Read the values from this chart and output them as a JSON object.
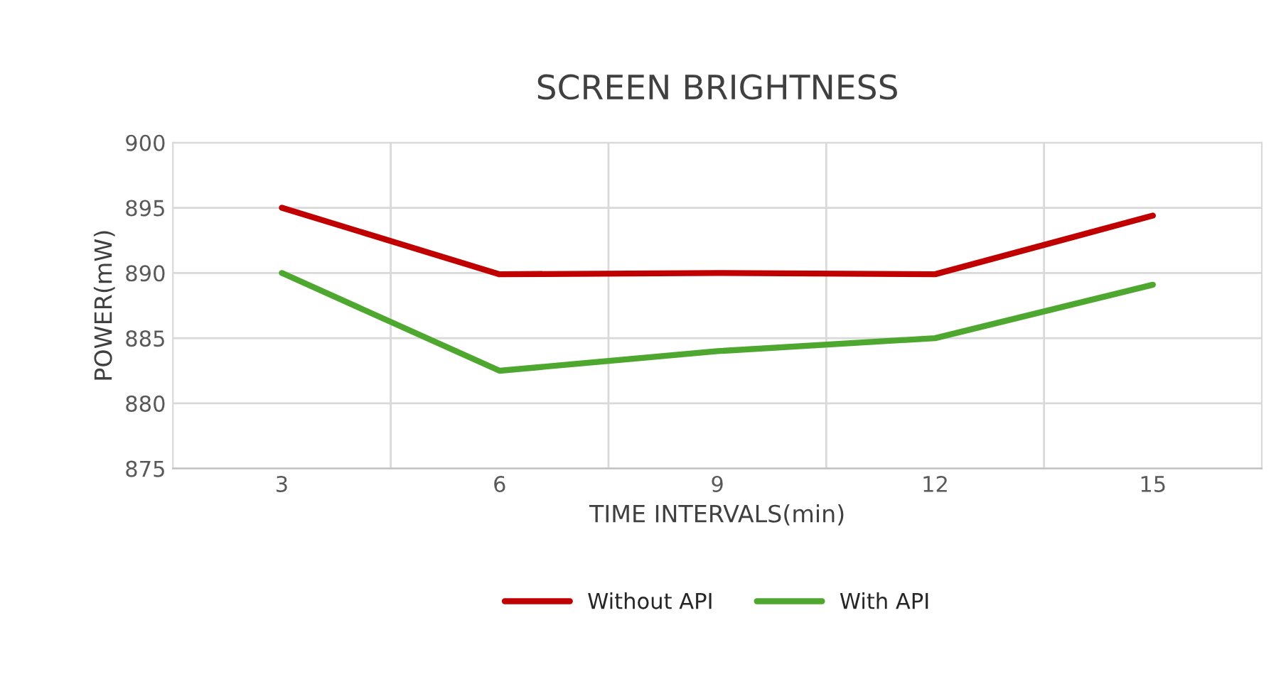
{
  "chart_data": {
    "type": "line",
    "title": "SCREEN BRIGHTNESS",
    "xlabel": "TIME INTERVALS(min)",
    "ylabel": "POWER(mW)",
    "categories": [
      "3",
      "6",
      "9",
      "12",
      "15"
    ],
    "series": [
      {
        "name": "Without API",
        "color": "#c00000",
        "values": [
          895,
          889.9,
          890,
          889.9,
          894.4
        ]
      },
      {
        "name": "With API",
        "color": "#4ea72e",
        "values": [
          890,
          882.5,
          884,
          885,
          889.1
        ]
      }
    ],
    "ylim": [
      875,
      900
    ],
    "yticks": [
      875,
      880,
      885,
      890,
      895,
      900
    ],
    "grid": true,
    "legend": "bottom",
    "marker": "none",
    "line_style": "solid"
  }
}
